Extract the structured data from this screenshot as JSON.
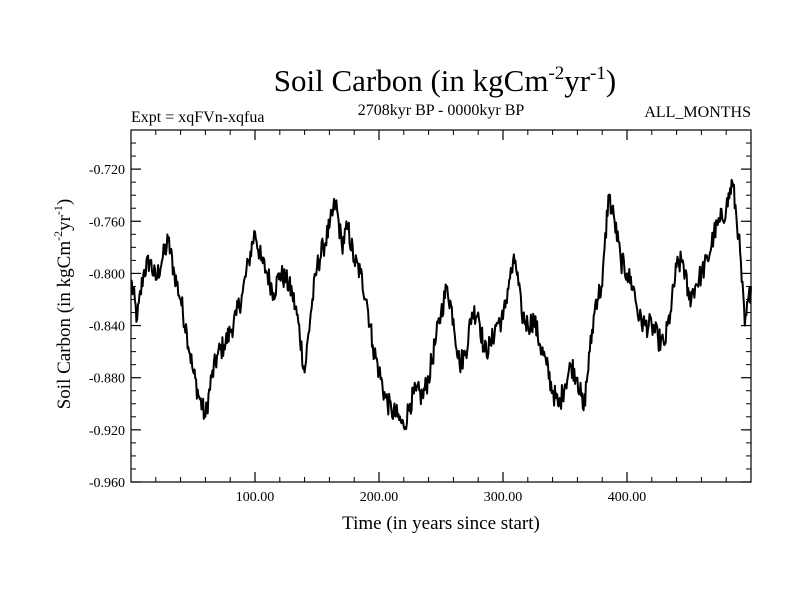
{
  "chart_data": {
    "type": "line",
    "title": "Soil Carbon (in kgCm",
    "title_sup1": "-2",
    "title_mid": "yr",
    "title_sup2": "-1",
    "title_end": ")",
    "experiment_label": "Expt = xqFVn-xqfua",
    "period_label": "2708kyr BP - 0000kyr BP",
    "season_label": "ALL_MONTHS",
    "xlabel": "Time (in years since start)",
    "ylabel": "Soil Carbon (in kgCm",
    "ylabel_sup1": "-2",
    "ylabel_mid": "yr",
    "ylabel_sup2": "-1",
    "ylabel_end": ")",
    "xlim": [
      0,
      500
    ],
    "ylim": [
      -0.96,
      -0.69
    ],
    "xticks": [
      100,
      200,
      300,
      400
    ],
    "xtick_labels": [
      "100.00",
      "200.00",
      "300.00",
      "400.00"
    ],
    "yticks": [
      -0.72,
      -0.76,
      -0.8,
      -0.84,
      -0.88,
      -0.92,
      -0.96
    ],
    "ytick_labels": [
      "-0.720",
      "-0.760",
      "-0.800",
      "-0.840",
      "-0.880",
      "-0.920",
      "-0.960"
    ],
    "grid": false,
    "series": [
      {
        "name": "Soil Carbon",
        "x": [
          0,
          5,
          10,
          15,
          20,
          25,
          30,
          35,
          40,
          45,
          50,
          55,
          60,
          65,
          70,
          75,
          80,
          85,
          90,
          95,
          100,
          105,
          110,
          115,
          120,
          125,
          130,
          135,
          140,
          145,
          150,
          155,
          160,
          165,
          170,
          175,
          180,
          185,
          190,
          195,
          200,
          205,
          210,
          215,
          220,
          225,
          230,
          235,
          240,
          245,
          250,
          255,
          260,
          265,
          270,
          275,
          280,
          285,
          290,
          295,
          300,
          305,
          310,
          315,
          320,
          325,
          330,
          335,
          340,
          345,
          350,
          355,
          360,
          365,
          370,
          375,
          380,
          385,
          390,
          395,
          400,
          405,
          410,
          415,
          420,
          425,
          430,
          435,
          440,
          445,
          450,
          455,
          460,
          465,
          470,
          475,
          480,
          485,
          490,
          495,
          500
        ],
        "values": [
          -0.805,
          -0.835,
          -0.8,
          -0.79,
          -0.805,
          -0.79,
          -0.775,
          -0.8,
          -0.82,
          -0.845,
          -0.875,
          -0.895,
          -0.91,
          -0.88,
          -0.862,
          -0.855,
          -0.845,
          -0.832,
          -0.815,
          -0.79,
          -0.768,
          -0.79,
          -0.8,
          -0.815,
          -0.8,
          -0.805,
          -0.815,
          -0.838,
          -0.876,
          -0.83,
          -0.795,
          -0.78,
          -0.765,
          -0.745,
          -0.778,
          -0.765,
          -0.79,
          -0.8,
          -0.82,
          -0.855,
          -0.875,
          -0.895,
          -0.905,
          -0.91,
          -0.918,
          -0.9,
          -0.89,
          -0.895,
          -0.88,
          -0.855,
          -0.83,
          -0.81,
          -0.835,
          -0.87,
          -0.86,
          -0.83,
          -0.83,
          -0.86,
          -0.855,
          -0.838,
          -0.835,
          -0.805,
          -0.79,
          -0.83,
          -0.84,
          -0.835,
          -0.855,
          -0.87,
          -0.89,
          -0.902,
          -0.885,
          -0.87,
          -0.88,
          -0.905,
          -0.86,
          -0.82,
          -0.81,
          -0.74,
          -0.76,
          -0.79,
          -0.8,
          -0.81,
          -0.835,
          -0.84,
          -0.84,
          -0.85,
          -0.855,
          -0.83,
          -0.795,
          -0.79,
          -0.82,
          -0.81,
          -0.8,
          -0.79,
          -0.77,
          -0.76,
          -0.75,
          -0.73,
          -0.77,
          -0.84,
          -0.81
        ]
      }
    ]
  }
}
